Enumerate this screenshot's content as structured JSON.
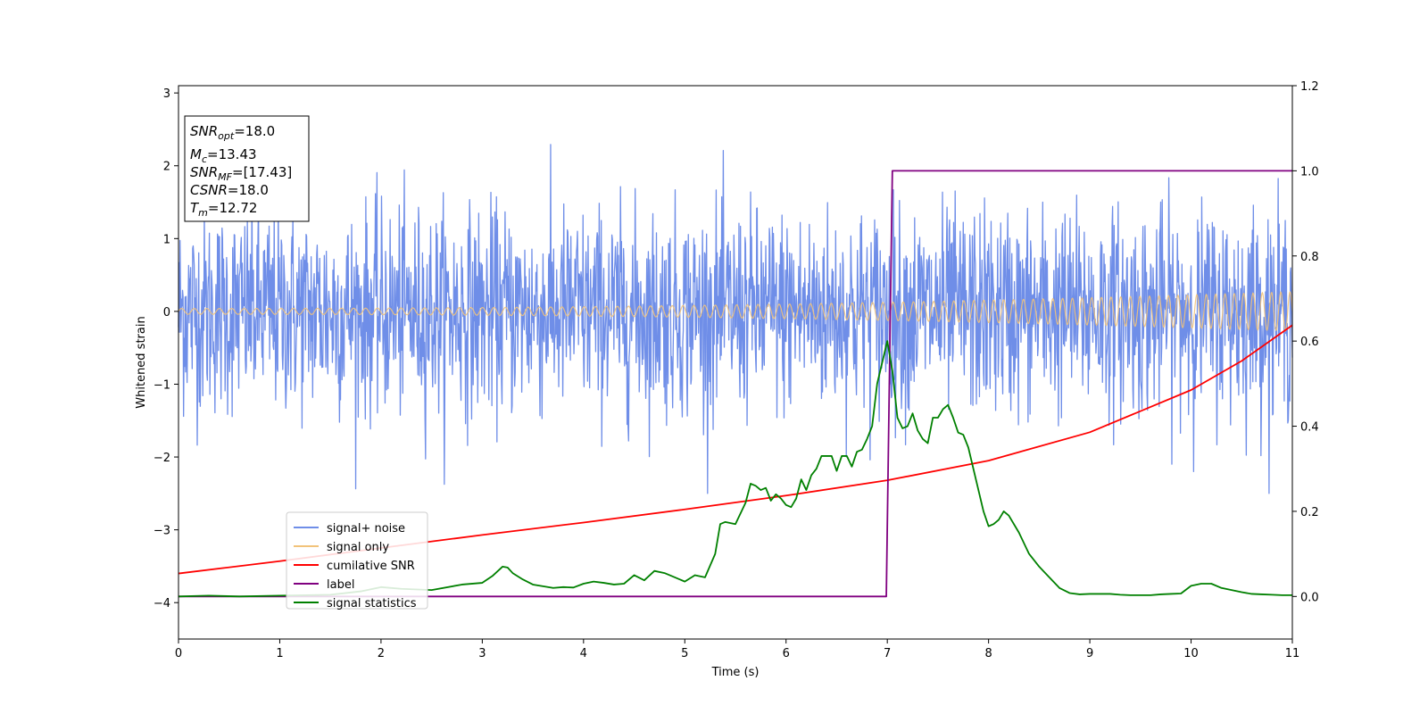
{
  "chart_data": {
    "type": "line",
    "xlabel": "Time (s)",
    "ylabel_left": "Whitened strain",
    "xlim": [
      0,
      11
    ],
    "ylim_left": [
      -4.5,
      3.1
    ],
    "ylim_right": [
      -0.1,
      1.2
    ],
    "x_ticks": [
      0,
      1,
      2,
      3,
      4,
      5,
      6,
      7,
      8,
      9,
      10,
      11
    ],
    "y_ticks_left": [
      3,
      2,
      1,
      0,
      -1,
      -2,
      -3,
      -4
    ],
    "y_ticks_right": [
      1.2,
      1.0,
      0.8,
      0.6,
      0.4,
      0.2,
      0.0
    ],
    "x_tick_labels": [
      "0",
      "1",
      "2",
      "3",
      "4",
      "5",
      "6",
      "7",
      "8",
      "9",
      "10",
      "11"
    ],
    "y_tick_labels_left": [
      "3",
      "2",
      "1",
      "0",
      "−1",
      "−2",
      "−3",
      "−4"
    ],
    "y_tick_labels_right": [
      "1.2",
      "1.0",
      "0.8",
      "0.6",
      "0.4",
      "0.2",
      "0.0"
    ],
    "legend_placement": "lower-left",
    "info_box": {
      "lines": [
        {
          "sym": "SNR",
          "sub": "opt",
          "value": "=18.0"
        },
        {
          "sym": "M",
          "sub": "c",
          "value": "=13.43"
        },
        {
          "sym": "SNR",
          "sub": "MF",
          "value": "=[17.43]"
        },
        {
          "sym": "CSNR",
          "sub": "",
          "value": "=18.0"
        },
        {
          "sym": "T",
          "sub": "m",
          "value": "=12.72"
        }
      ]
    },
    "series": [
      {
        "name": "signal+ noise",
        "color": "#6f8ee8",
        "axis": "left",
        "kind": "noise",
        "std": 0.7
      },
      {
        "name": "signal only",
        "color": "#f2c37a",
        "axis": "left",
        "kind": "chirp",
        "amplitude_start": 0.04,
        "amplitude_end": 0.27
      },
      {
        "name": "cumilative SNR",
        "color": "#ff0000",
        "axis": "left",
        "x": [
          0,
          1,
          2,
          3,
          4,
          5,
          6,
          7,
          8,
          9,
          10,
          10.5,
          11
        ],
        "y": [
          -3.6,
          -3.43,
          -3.25,
          -3.07,
          -2.9,
          -2.72,
          -2.53,
          -2.32,
          -2.05,
          -1.66,
          -1.08,
          -0.68,
          -0.19
        ]
      },
      {
        "name": "label",
        "color": "#800080",
        "axis": "right",
        "x": [
          0,
          6.99,
          7.05,
          11
        ],
        "y": [
          0.0,
          0.0,
          1.0,
          1.0
        ]
      },
      {
        "name": "signal statistics",
        "color": "#008000",
        "axis": "right",
        "x": [
          0,
          0.3,
          0.6,
          1.0,
          1.5,
          1.8,
          2.0,
          2.2,
          2.5,
          2.8,
          3.0,
          3.1,
          3.2,
          3.25,
          3.3,
          3.4,
          3.5,
          3.6,
          3.7,
          3.8,
          3.9,
          4.0,
          4.1,
          4.2,
          4.3,
          4.4,
          4.5,
          4.6,
          4.7,
          4.8,
          4.9,
          5.0,
          5.1,
          5.2,
          5.3,
          5.35,
          5.4,
          5.5,
          5.6,
          5.65,
          5.7,
          5.75,
          5.8,
          5.85,
          5.9,
          5.95,
          6.0,
          6.05,
          6.1,
          6.15,
          6.2,
          6.25,
          6.3,
          6.35,
          6.4,
          6.45,
          6.5,
          6.55,
          6.6,
          6.65,
          6.7,
          6.75,
          6.8,
          6.85,
          6.9,
          6.95,
          7.0,
          7.05,
          7.1,
          7.15,
          7.2,
          7.25,
          7.3,
          7.35,
          7.4,
          7.45,
          7.5,
          7.55,
          7.6,
          7.65,
          7.7,
          7.75,
          7.8,
          7.85,
          7.9,
          7.95,
          8.0,
          8.05,
          8.1,
          8.15,
          8.2,
          8.3,
          8.4,
          8.5,
          8.6,
          8.7,
          8.8,
          8.9,
          9.0,
          9.1,
          9.2,
          9.3,
          9.4,
          9.5,
          9.6,
          9.7,
          9.8,
          9.9,
          10.0,
          10.1,
          10.2,
          10.3,
          10.4,
          10.5,
          10.6,
          10.7,
          10.8,
          10.9,
          11.0
        ],
        "y": [
          0.0,
          0.002,
          0.0,
          0.002,
          0.004,
          0.012,
          0.022,
          0.018,
          0.015,
          0.028,
          0.032,
          0.048,
          0.07,
          0.068,
          0.055,
          0.04,
          0.028,
          0.024,
          0.02,
          0.022,
          0.021,
          0.03,
          0.035,
          0.032,
          0.028,
          0.03,
          0.05,
          0.038,
          0.06,
          0.055,
          0.045,
          0.035,
          0.05,
          0.045,
          0.1,
          0.17,
          0.175,
          0.17,
          0.22,
          0.265,
          0.26,
          0.25,
          0.255,
          0.225,
          0.24,
          0.23,
          0.215,
          0.21,
          0.23,
          0.275,
          0.25,
          0.285,
          0.3,
          0.33,
          0.33,
          0.33,
          0.295,
          0.33,
          0.33,
          0.305,
          0.34,
          0.345,
          0.37,
          0.4,
          0.5,
          0.55,
          0.6,
          0.53,
          0.42,
          0.395,
          0.4,
          0.43,
          0.39,
          0.37,
          0.36,
          0.42,
          0.42,
          0.44,
          0.45,
          0.42,
          0.385,
          0.38,
          0.35,
          0.3,
          0.25,
          0.2,
          0.165,
          0.17,
          0.18,
          0.2,
          0.19,
          0.15,
          0.1,
          0.07,
          0.045,
          0.02,
          0.008,
          0.005,
          0.006,
          0.006,
          0.006,
          0.004,
          0.003,
          0.003,
          0.003,
          0.005,
          0.006,
          0.007,
          0.025,
          0.03,
          0.03,
          0.02,
          0.015,
          0.01,
          0.006,
          0.005,
          0.004,
          0.003,
          0.003
        ]
      }
    ]
  }
}
